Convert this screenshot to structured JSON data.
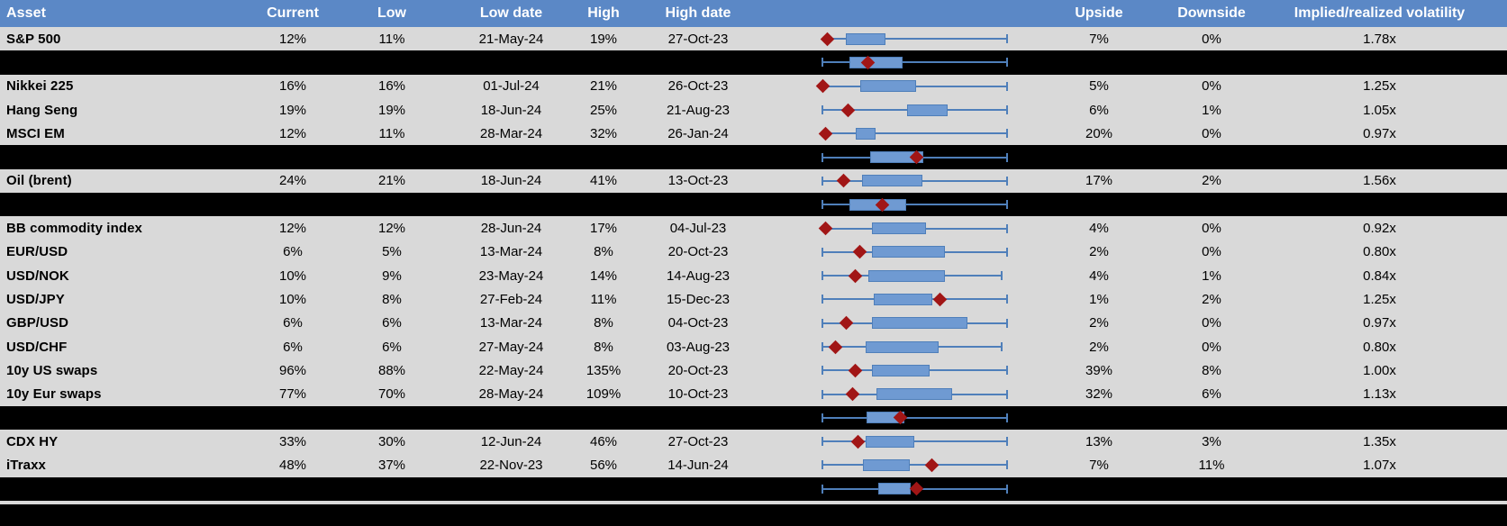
{
  "colors": {
    "header_bg": "#5b88c6",
    "header_text": "#ffffff",
    "row_bg": "#d9d9d9",
    "separator_bg": "#000000",
    "text": "#000000",
    "box_fill": "#6f9ad2",
    "box_border": "#4f7fba",
    "whisker": "#4f7fba",
    "marker": "#a11616"
  },
  "chart_data": {
    "type": "table",
    "description": "Implied volatility table with embedded box-whisker plots; red diamond marks current level, box and whiskers span the low-high range (normalized 0-1 across plot width)",
    "columns": [
      "Asset",
      "Current",
      "Low",
      "Low date",
      "High",
      "High date",
      "",
      "Upside",
      "Downside",
      "Implied/realized volatility"
    ],
    "rows": [
      {
        "kind": "data",
        "asset": "S&P 500",
        "current": "12%",
        "low": "11%",
        "low_date": "21-May-24",
        "high": "19%",
        "high_date": "27-Oct-23",
        "upside": "7%",
        "downside": "0%",
        "implied_realized_vol": "1.78x",
        "box": {
          "lo": 0.03,
          "q1": 0.127,
          "q3": 0.341,
          "hi": 1,
          "marker": 0.029,
          "cap_left": false
        }
      },
      {
        "kind": "separator",
        "box": {
          "lo": 0,
          "q1": 0.146,
          "q3": 0.434,
          "hi": 1,
          "marker": 0.244,
          "cap_left": true
        }
      },
      {
        "kind": "data",
        "asset": "Nikkei 225",
        "current": "16%",
        "low": "16%",
        "low_date": "01-Jul-24",
        "high": "21%",
        "high_date": "26-Oct-23",
        "upside": "5%",
        "downside": "0%",
        "implied_realized_vol": "1.25x",
        "box": {
          "lo": 0,
          "q1": 0.205,
          "q3": 0.507,
          "hi": 1,
          "marker": 0.0,
          "cap_left": false
        }
      },
      {
        "kind": "data",
        "asset": "Hang Seng",
        "current": "19%",
        "low": "19%",
        "low_date": "18-Jun-24",
        "high": "25%",
        "high_date": "21-Aug-23",
        "upside": "6%",
        "downside": "1%",
        "implied_realized_vol": "1.05x",
        "box": {
          "lo": 0,
          "q1": 0.459,
          "q3": 0.678,
          "hi": 1,
          "marker": 0.137,
          "cap_left": true
        }
      },
      {
        "kind": "data",
        "asset": "MSCI EM",
        "current": "12%",
        "low": "11%",
        "low_date": "28-Mar-24",
        "high": "32%",
        "high_date": "26-Jan-24",
        "upside": "20%",
        "downside": "0%",
        "implied_realized_vol": "0.97x",
        "box": {
          "lo": 0.015,
          "q1": 0.18,
          "q3": 0.288,
          "hi": 1,
          "marker": 0.015,
          "cap_left": false
        }
      },
      {
        "kind": "separator",
        "box": {
          "lo": 0,
          "q1": 0.259,
          "q3": 0.546,
          "hi": 1,
          "marker": 0.512,
          "cap_left": true
        }
      },
      {
        "kind": "data",
        "asset": "Oil (brent)",
        "current": "24%",
        "low": "21%",
        "low_date": "18-Jun-24",
        "high": "41%",
        "high_date": "13-Oct-23",
        "upside": "17%",
        "downside": "2%",
        "implied_realized_vol": "1.56x",
        "box": {
          "lo": 0,
          "q1": 0.215,
          "q3": 0.541,
          "hi": 1,
          "marker": 0.117,
          "cap_left": true
        }
      },
      {
        "kind": "separator",
        "box": {
          "lo": 0,
          "q1": 0.146,
          "q3": 0.454,
          "hi": 1,
          "marker": 0.322,
          "cap_left": true
        }
      },
      {
        "kind": "data",
        "asset": "BB commodity index",
        "current": "12%",
        "low": "12%",
        "low_date": "28-Jun-24",
        "high": "17%",
        "high_date": "04-Jul-23",
        "upside": "4%",
        "downside": "0%",
        "implied_realized_vol": "0.92x",
        "box": {
          "lo": 0.015,
          "q1": 0.268,
          "q3": 0.561,
          "hi": 1,
          "marker": 0.015,
          "cap_left": false
        }
      },
      {
        "kind": "data",
        "asset": "EUR/USD",
        "current": "6%",
        "low": "5%",
        "low_date": "13-Mar-24",
        "high": "8%",
        "high_date": "20-Oct-23",
        "upside": "2%",
        "downside": "0%",
        "implied_realized_vol": "0.80x",
        "box": {
          "lo": 0,
          "q1": 0.268,
          "q3": 0.663,
          "hi": 1,
          "marker": 0.2,
          "cap_left": true
        }
      },
      {
        "kind": "data",
        "asset": "USD/NOK",
        "current": "10%",
        "low": "9%",
        "low_date": "23-May-24",
        "high": "14%",
        "high_date": "14-Aug-23",
        "upside": "4%",
        "downside": "1%",
        "implied_realized_vol": "0.84x",
        "box": {
          "lo": 0,
          "q1": 0.249,
          "q3": 0.663,
          "hi": 0.97,
          "marker": 0.176,
          "cap_left": true
        }
      },
      {
        "kind": "data",
        "asset": "USD/JPY",
        "current": "10%",
        "low": "8%",
        "low_date": "27-Feb-24",
        "high": "11%",
        "high_date": "15-Dec-23",
        "upside": "1%",
        "downside": "2%",
        "implied_realized_vol": "1.25x",
        "box": {
          "lo": 0,
          "q1": 0.278,
          "q3": 0.595,
          "hi": 1,
          "marker": 0.639,
          "cap_left": true
        }
      },
      {
        "kind": "data",
        "asset": "GBP/USD",
        "current": "6%",
        "low": "6%",
        "low_date": "13-Mar-24",
        "high": "8%",
        "high_date": "04-Oct-23",
        "upside": "2%",
        "downside": "0%",
        "implied_realized_vol": "0.97x",
        "box": {
          "lo": 0,
          "q1": 0.268,
          "q3": 0.785,
          "hi": 1,
          "marker": 0.127,
          "cap_left": true
        }
      },
      {
        "kind": "data",
        "asset": "USD/CHF",
        "current": "6%",
        "low": "6%",
        "low_date": "27-May-24",
        "high": "8%",
        "high_date": "03-Aug-23",
        "upside": "2%",
        "downside": "0%",
        "implied_realized_vol": "0.80x",
        "box": {
          "lo": 0,
          "q1": 0.234,
          "q3": 0.629,
          "hi": 0.97,
          "marker": 0.073,
          "cap_left": true
        }
      },
      {
        "kind": "data",
        "asset": "10y US swaps",
        "current": "96%",
        "low": "88%",
        "low_date": "22-May-24",
        "high": "135%",
        "high_date": "20-Oct-23",
        "upside": "39%",
        "downside": "8%",
        "implied_realized_vol": "1.00x",
        "box": {
          "lo": 0,
          "q1": 0.268,
          "q3": 0.58,
          "hi": 1,
          "marker": 0.18,
          "cap_left": true
        }
      },
      {
        "kind": "data",
        "asset": "10y Eur swaps",
        "current": "77%",
        "low": "70%",
        "low_date": "28-May-24",
        "high": "109%",
        "high_date": "10-Oct-23",
        "upside": "32%",
        "downside": "6%",
        "implied_realized_vol": "1.13x",
        "box": {
          "lo": 0,
          "q1": 0.293,
          "q3": 0.702,
          "hi": 1,
          "marker": 0.161,
          "cap_left": true
        }
      },
      {
        "kind": "separator",
        "box": {
          "lo": 0,
          "q1": 0.239,
          "q3": 0.444,
          "hi": 1,
          "marker": 0.42,
          "cap_left": true
        }
      },
      {
        "kind": "data",
        "asset": "CDX HY",
        "current": "33%",
        "low": "30%",
        "low_date": "12-Jun-24",
        "high": "46%",
        "high_date": "27-Oct-23",
        "upside": "13%",
        "downside": "3%",
        "implied_realized_vol": "1.35x",
        "box": {
          "lo": 0,
          "q1": 0.234,
          "q3": 0.498,
          "hi": 1,
          "marker": 0.195,
          "cap_left": true
        }
      },
      {
        "kind": "data",
        "asset": "iTraxx",
        "current": "48%",
        "low": "37%",
        "low_date": "22-Nov-23",
        "high": "56%",
        "high_date": "14-Jun-24",
        "upside": "7%",
        "downside": "11%",
        "implied_realized_vol": "1.07x",
        "box": {
          "lo": 0,
          "q1": 0.22,
          "q3": 0.473,
          "hi": 1,
          "marker": 0.595,
          "cap_left": true
        }
      },
      {
        "kind": "separator",
        "box": {
          "lo": 0,
          "q1": 0.302,
          "q3": 0.478,
          "hi": 1,
          "marker": 0.51,
          "cap_left": true
        }
      },
      {
        "kind": "divider"
      },
      {
        "kind": "separator_empty"
      }
    ]
  }
}
